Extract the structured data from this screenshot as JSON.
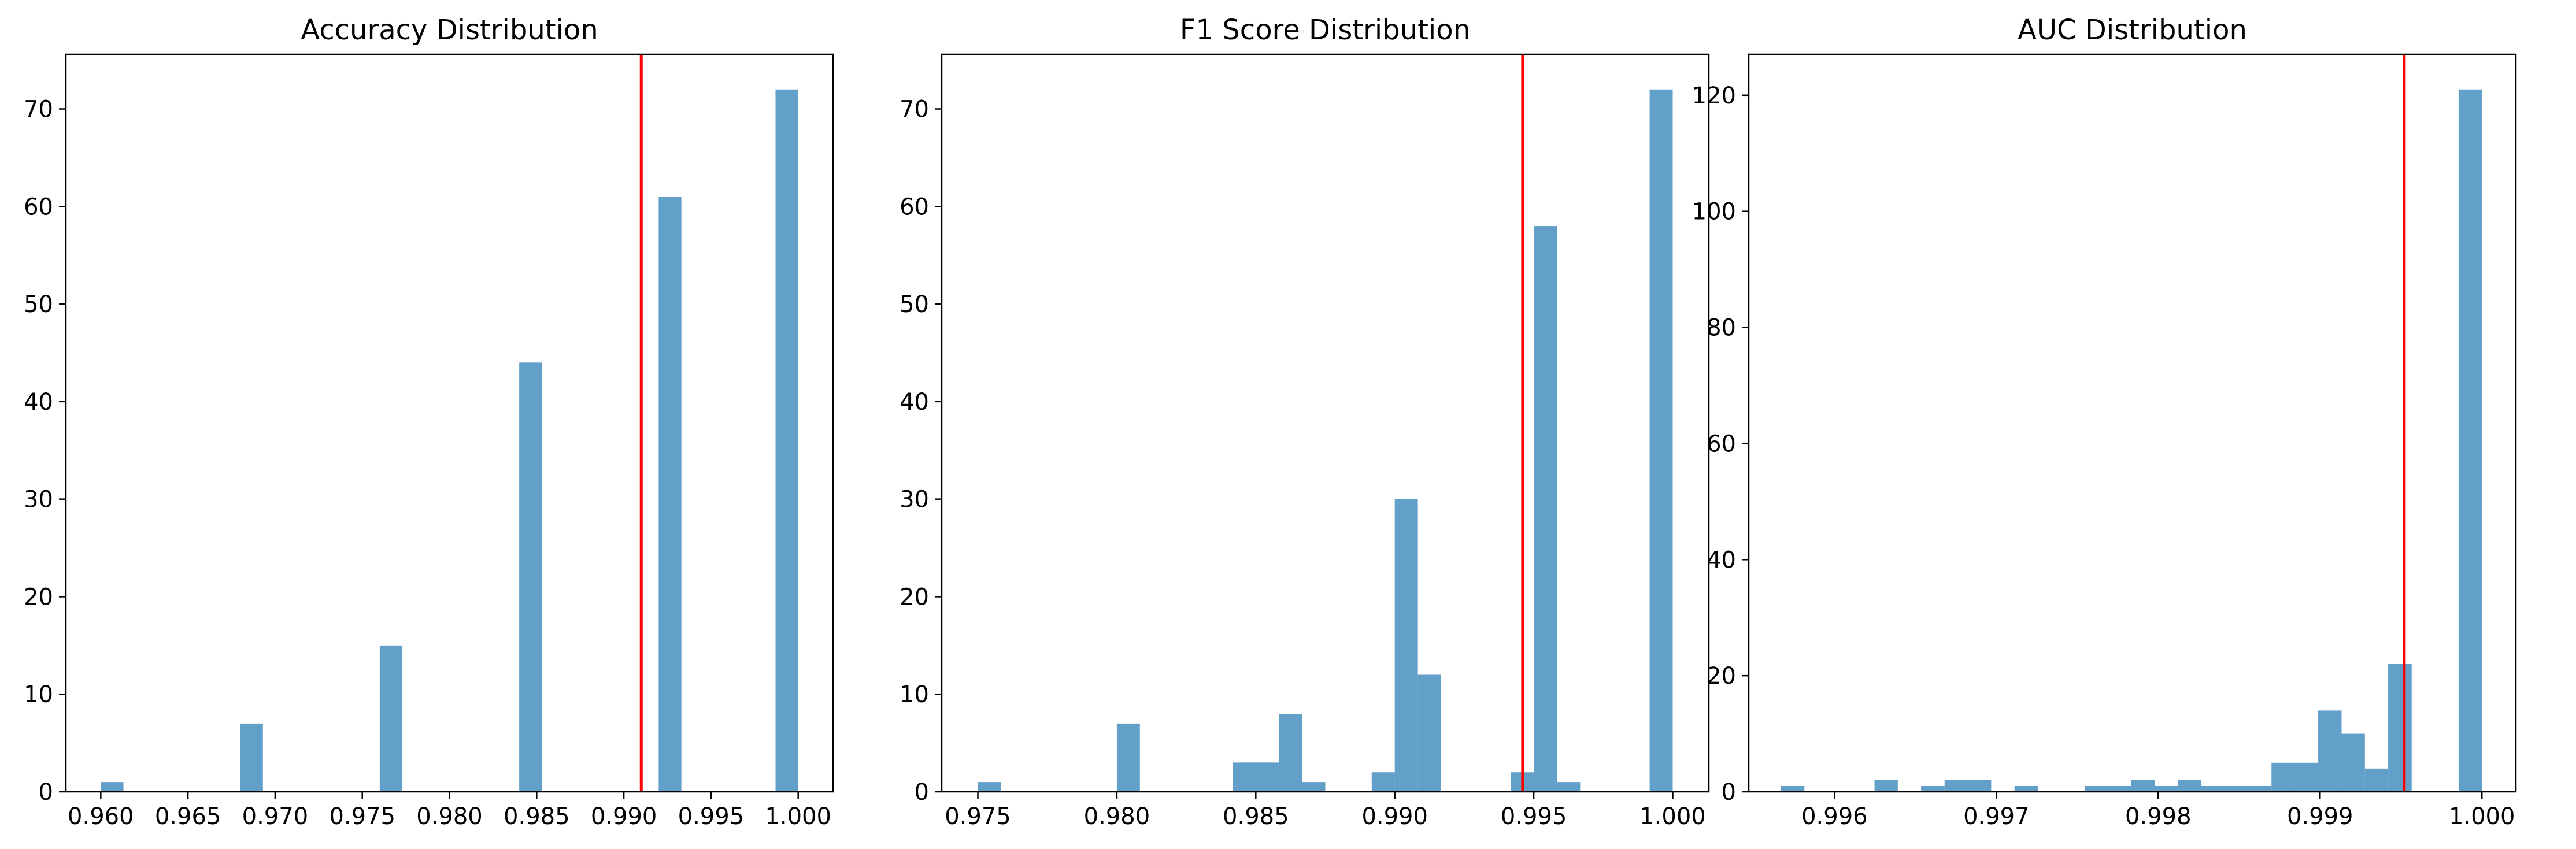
{
  "chart_data": [
    {
      "type": "bar",
      "title": "Accuracy Distribution",
      "xlabel": "",
      "ylabel": "",
      "xlim": [
        0.958,
        1.002
      ],
      "ylim": [
        0,
        75.6
      ],
      "xticks": [
        0.96,
        0.965,
        0.97,
        0.975,
        0.98,
        0.985,
        0.99,
        0.995,
        1.0
      ],
      "xtick_labels": [
        "0.960",
        "0.965",
        "0.970",
        "0.975",
        "0.980",
        "0.985",
        "0.990",
        "0.995",
        "1.000"
      ],
      "yticks": [
        0,
        10,
        20,
        30,
        40,
        50,
        60,
        70
      ],
      "ytick_labels": [
        "0",
        "10",
        "20",
        "30",
        "40",
        "50",
        "60",
        "70"
      ],
      "bins": [
        {
          "x0": 0.96,
          "x1": 0.9613,
          "count": 1
        },
        {
          "x0": 0.968,
          "x1": 0.9693,
          "count": 7
        },
        {
          "x0": 0.976,
          "x1": 0.9773,
          "count": 15
        },
        {
          "x0": 0.984,
          "x1": 0.9853,
          "count": 44
        },
        {
          "x0": 0.992,
          "x1": 0.9933,
          "count": 61
        },
        {
          "x0": 0.9987,
          "x1": 1.0,
          "count": 72
        }
      ],
      "mean_line": 0.991,
      "grid": false
    },
    {
      "type": "bar",
      "title": "F1 Score Distribution",
      "xlabel": "",
      "ylabel": "",
      "xlim": [
        0.9737,
        1.0013
      ],
      "ylim": [
        0,
        75.6
      ],
      "xticks": [
        0.975,
        0.98,
        0.985,
        0.99,
        0.995,
        1.0
      ],
      "xtick_labels": [
        "0.975",
        "0.980",
        "0.985",
        "0.990",
        "0.995",
        "1.000"
      ],
      "yticks": [
        0,
        10,
        20,
        30,
        40,
        50,
        60,
        70
      ],
      "ytick_labels": [
        "0",
        "10",
        "20",
        "30",
        "40",
        "50",
        "60",
        "70"
      ],
      "bins": [
        {
          "x0": 0.975,
          "x1": 0.97583,
          "count": 1
        },
        {
          "x0": 0.98,
          "x1": 0.98083,
          "count": 7
        },
        {
          "x0": 0.98417,
          "x1": 0.985,
          "count": 3
        },
        {
          "x0": 0.985,
          "x1": 0.98583,
          "count": 3
        },
        {
          "x0": 0.98583,
          "x1": 0.98667,
          "count": 8
        },
        {
          "x0": 0.98667,
          "x1": 0.9875,
          "count": 1
        },
        {
          "x0": 0.98917,
          "x1": 0.99,
          "count": 2
        },
        {
          "x0": 0.99,
          "x1": 0.99083,
          "count": 30
        },
        {
          "x0": 0.99083,
          "x1": 0.99167,
          "count": 12
        },
        {
          "x0": 0.99417,
          "x1": 0.995,
          "count": 2
        },
        {
          "x0": 0.995,
          "x1": 0.99583,
          "count": 58
        },
        {
          "x0": 0.99583,
          "x1": 0.99667,
          "count": 1
        },
        {
          "x0": 0.99917,
          "x1": 1.0,
          "count": 72
        }
      ],
      "mean_line": 0.9946,
      "grid": false
    },
    {
      "type": "bar",
      "title": "AUC Distribution",
      "xlabel": "",
      "ylabel": "",
      "xlim": [
        0.99547,
        1.00021
      ],
      "ylim": [
        0,
        127.05
      ],
      "xticks": [
        0.996,
        0.997,
        0.998,
        0.999,
        1.0
      ],
      "xtick_labels": [
        "0.996",
        "0.997",
        "0.998",
        "0.999",
        "1.000"
      ],
      "yticks": [
        0,
        20,
        40,
        60,
        80,
        100,
        120
      ],
      "ytick_labels": [
        "0",
        "20",
        "40",
        "60",
        "80",
        "100",
        "120"
      ],
      "bins": [
        {
          "x0": 0.99567,
          "x1": 0.995814,
          "count": 1
        },
        {
          "x0": 0.996247,
          "x1": 0.996391,
          "count": 2
        },
        {
          "x0": 0.996535,
          "x1": 0.99668,
          "count": 1
        },
        {
          "x0": 0.99668,
          "x1": 0.996824,
          "count": 2
        },
        {
          "x0": 0.996824,
          "x1": 0.996968,
          "count": 2
        },
        {
          "x0": 0.997112,
          "x1": 0.997257,
          "count": 1
        },
        {
          "x0": 0.997545,
          "x1": 0.99769,
          "count": 1
        },
        {
          "x0": 0.99769,
          "x1": 0.997834,
          "count": 1
        },
        {
          "x0": 0.997834,
          "x1": 0.997978,
          "count": 2
        },
        {
          "x0": 0.997978,
          "x1": 0.998122,
          "count": 1
        },
        {
          "x0": 0.998122,
          "x1": 0.998267,
          "count": 2
        },
        {
          "x0": 0.998267,
          "x1": 0.998411,
          "count": 1
        },
        {
          "x0": 0.998411,
          "x1": 0.998555,
          "count": 1
        },
        {
          "x0": 0.998555,
          "x1": 0.9987,
          "count": 1
        },
        {
          "x0": 0.9987,
          "x1": 0.998844,
          "count": 5
        },
        {
          "x0": 0.998844,
          "x1": 0.998988,
          "count": 5
        },
        {
          "x0": 0.998988,
          "x1": 0.999133,
          "count": 14
        },
        {
          "x0": 0.999133,
          "x1": 0.999277,
          "count": 10
        },
        {
          "x0": 0.999277,
          "x1": 0.999421,
          "count": 4
        },
        {
          "x0": 0.999421,
          "x1": 0.999566,
          "count": 22
        },
        {
          "x0": 0.999856,
          "x1": 1.0,
          "count": 121
        }
      ],
      "mean_line": 0.99952,
      "grid": false
    }
  ],
  "colors": {
    "bar": "#1f77b4",
    "bar_opacity": 0.7,
    "mean_line": "#ff0000",
    "axis": "#000000",
    "background": "#ffffff"
  }
}
